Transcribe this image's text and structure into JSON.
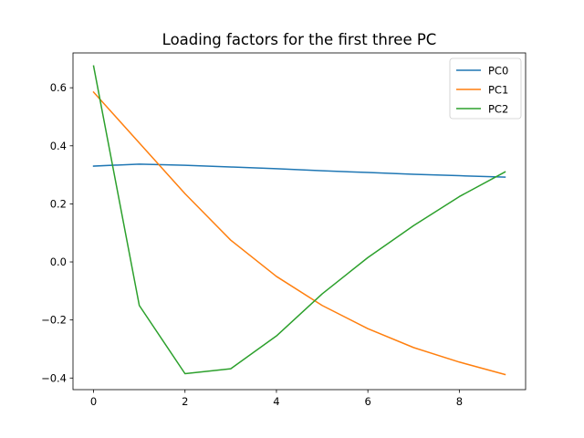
{
  "chart_data": {
    "type": "line",
    "title": "Loading factors for the first three PC",
    "xlabel": "",
    "ylabel": "",
    "xlim": [
      -0.45,
      9.45
    ],
    "ylim": [
      -0.44,
      0.72
    ],
    "xticks": [
      0,
      2,
      4,
      6,
      8
    ],
    "xtick_labels": [
      "0",
      "2",
      "4",
      "6",
      "8"
    ],
    "yticks": [
      -0.4,
      -0.2,
      0.0,
      0.2,
      0.4,
      0.6
    ],
    "ytick_labels": [
      "−0.4",
      "−0.2",
      "0.0",
      "0.2",
      "0.4",
      "0.6"
    ],
    "grid": false,
    "legend_position": "upper right",
    "x": [
      0,
      1,
      2,
      3,
      4,
      5,
      6,
      7,
      8,
      9
    ],
    "series": [
      {
        "name": "PC0",
        "color": "#1f77b4",
        "values": [
          0.33,
          0.337,
          0.333,
          0.327,
          0.321,
          0.314,
          0.308,
          0.302,
          0.297,
          0.292
        ]
      },
      {
        "name": "PC1",
        "color": "#ff7f0e",
        "values": [
          0.585,
          0.41,
          0.235,
          0.075,
          -0.05,
          -0.15,
          -0.23,
          -0.295,
          -0.345,
          -0.388
        ]
      },
      {
        "name": "PC2",
        "color": "#2ca02c",
        "values": [
          0.675,
          -0.15,
          -0.385,
          -0.368,
          -0.255,
          -0.11,
          0.015,
          0.125,
          0.225,
          0.31
        ]
      }
    ]
  }
}
